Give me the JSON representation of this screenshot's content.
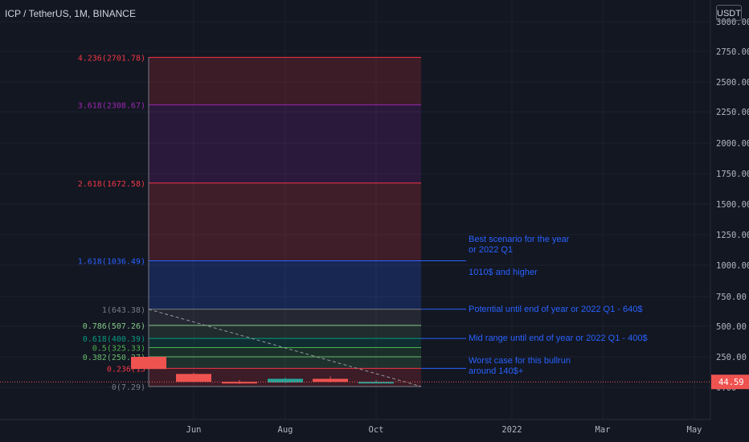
{
  "header": {
    "symbol_title": "ICP / TetherUS, 1M, BINANCE",
    "currency_badge": "USDT"
  },
  "colors": {
    "background": "#131722",
    "axis_text": "#b2b5be",
    "grid": "#1e222d",
    "annotation": "#2962ff",
    "last_price_bg": "#ef5350",
    "bull": "#26a69a",
    "bear": "#ef5350"
  },
  "chart_data": {
    "type": "candlestick",
    "title": "ICP / TetherUS, 1M, BINANCE",
    "y_axis": {
      "unit": "USDT",
      "ticks": [
        "3000.00",
        "2750.00",
        "2500.00",
        "2250.00",
        "2000.00",
        "1750.00",
        "1500.00",
        "1250.00",
        "1000.00",
        "750.00",
        "500.00",
        "250.00",
        "0.00"
      ],
      "scale": "percent/sqrt-like (non-linear)"
    },
    "x_axis": {
      "ticks": [
        "Jun",
        "Aug",
        "Oct",
        "2022",
        "Mar",
        "May"
      ]
    },
    "last_price": "44.59",
    "candles": [
      {
        "month": "2021-05",
        "open": 250,
        "high": 250,
        "low": 150,
        "close": 150
      },
      {
        "month": "2021-06",
        "open": 110,
        "high": 120,
        "low": 45,
        "close": 45
      },
      {
        "month": "2021-07",
        "open": 45,
        "high": 60,
        "low": 28,
        "close": 40
      },
      {
        "month": "2021-08",
        "open": 40,
        "high": 80,
        "low": 35,
        "close": 70
      },
      {
        "month": "2021-09",
        "open": 70,
        "high": 90,
        "low": 40,
        "close": 45
      },
      {
        "month": "2021-10",
        "open": 45,
        "high": 60,
        "low": 40,
        "close": 45
      }
    ],
    "fib_levels": [
      {
        "label": "4.236(2701.78)",
        "ratio": "4.236",
        "value": 2701.78,
        "color": "#f23645"
      },
      {
        "label": "3.618(2308.67)",
        "ratio": "3.618",
        "value": 2308.67,
        "color": "#9c27b0"
      },
      {
        "label": "2.618(1672.58)",
        "ratio": "2.618",
        "value": 1672.58,
        "color": "#f23645"
      },
      {
        "label": "1.618(1036.49)",
        "ratio": "1.618",
        "value": 1036.49,
        "color": "#2962ff"
      },
      {
        "label": "1(643.38)",
        "ratio": "1",
        "value": 643.38,
        "color": "#787b86"
      },
      {
        "label": "0.786(507.26)",
        "ratio": "0.786",
        "value": 507.26,
        "color": "#81c784"
      },
      {
        "label": "0.618(400.39)",
        "ratio": "0.618",
        "value": 400.39,
        "color": "#089981"
      },
      {
        "label": "0.5(325.33)",
        "ratio": "0.5",
        "value": 325.33,
        "color": "#4caf50"
      },
      {
        "label": "0.382(250.27)",
        "ratio": "0.382",
        "value": 250.27,
        "color": "#66bb6a"
      },
      {
        "label": "0.236(15",
        "ratio": "0.236",
        "value": 155.41,
        "color": "#f23645"
      },
      {
        "label": "0(7.29)",
        "ratio": "0",
        "value": 7.29,
        "color": "#787b86"
      }
    ],
    "annotations": [
      {
        "lines": [
          "Best scenario for the year",
          "or 2022 Q1"
        ],
        "level": 1036.49
      },
      {
        "lines": [
          "1010$ and higher"
        ],
        "level": null
      },
      {
        "lines": [
          "Potential until end of year or 2022 Q1 - 640$"
        ],
        "level": 643.38
      },
      {
        "lines": [
          "Mid range until end of year or 2022 Q1 - 400$"
        ],
        "level": 400.39
      },
      {
        "lines": [
          "Worst case for this bullrun",
          "around 140$+"
        ],
        "level": 155.41
      }
    ]
  }
}
